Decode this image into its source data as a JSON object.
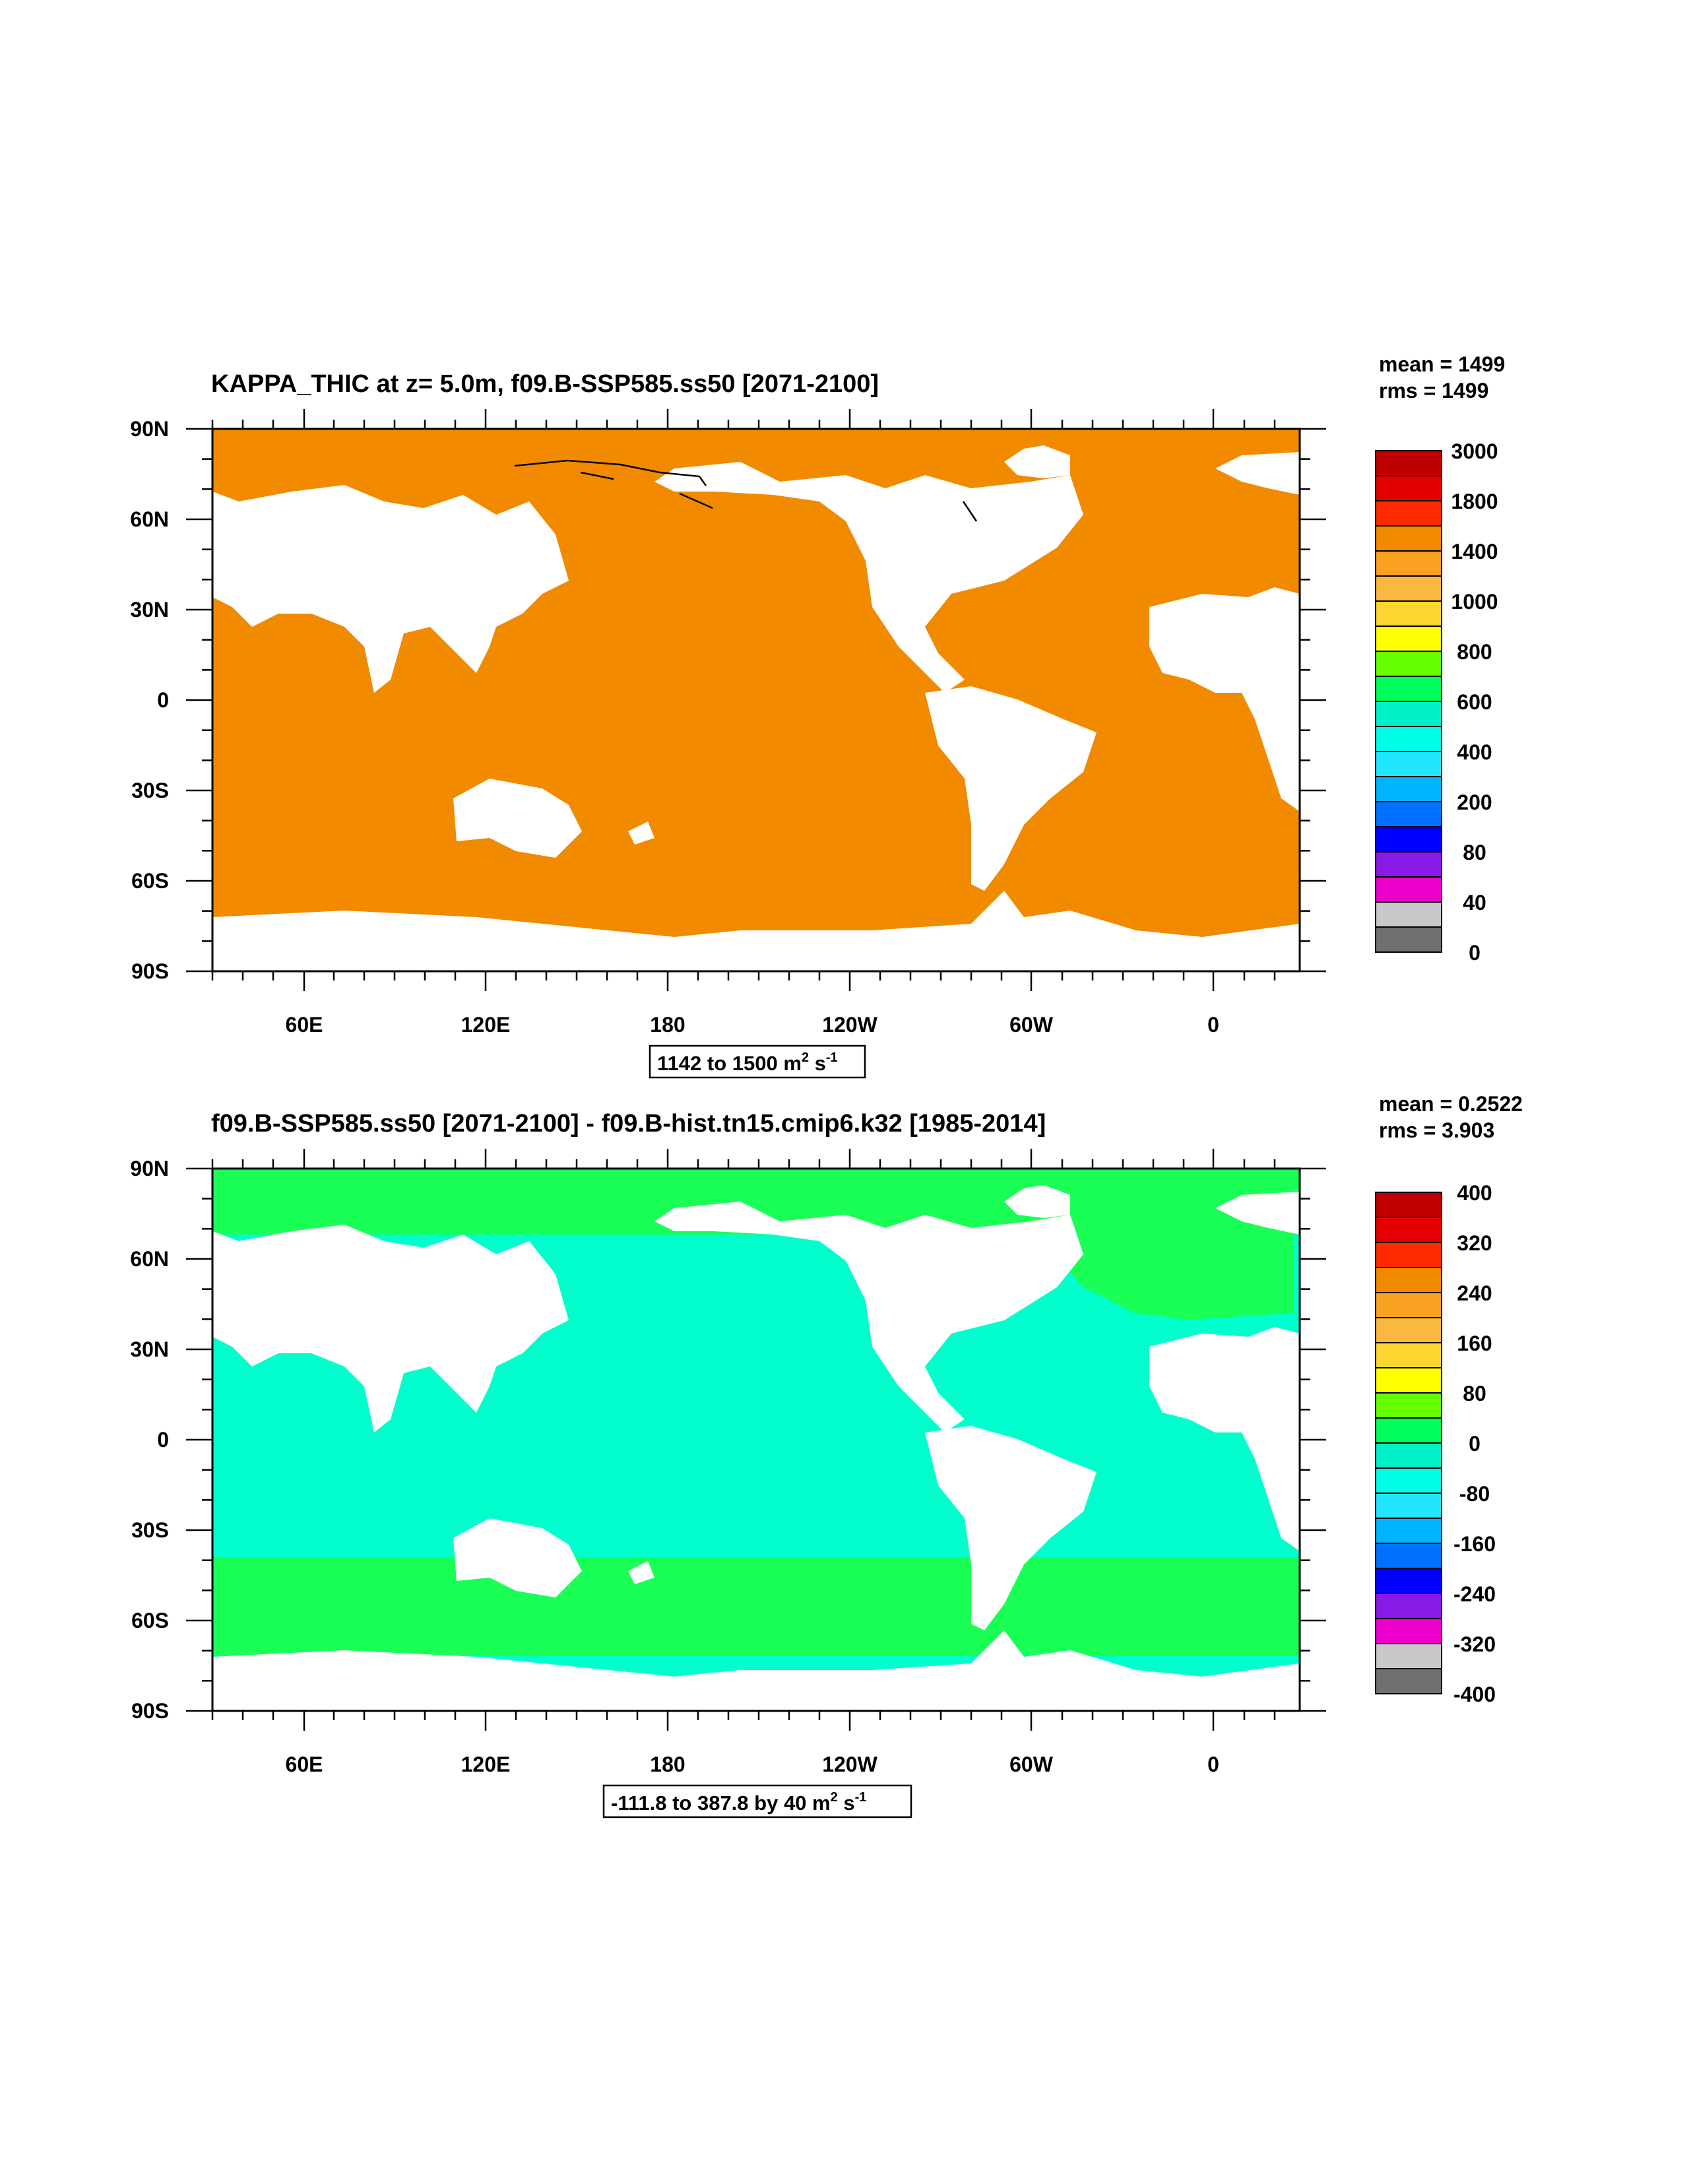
{
  "panels": [
    {
      "title": "KAPPA_THIC at z=   5.0m, f09.B-SSP585.ss50 [2071-2100]",
      "stats": {
        "mean": "mean = 1499",
        "rms": "rms = 1499"
      },
      "range_label": {
        "text": "1142 to 1500 m",
        "sup1": "2",
        "mid": " s",
        "sup2": "-1"
      },
      "ocean_fill": "#f28a00",
      "colorbar": {
        "labels": [
          "3000",
          "1800",
          "1400",
          "1000",
          "800",
          "600",
          "400",
          "200",
          "80",
          "40",
          "0"
        ],
        "colors": [
          "#c00000",
          "#e50000",
          "#ff2a00",
          "#f28a00",
          "#f8a020",
          "#fbb840",
          "#fcd62e",
          "#ffff00",
          "#66ff00",
          "#00ff5a",
          "#00f0c8",
          "#00ffe6",
          "#22e6ff",
          "#00b4ff",
          "#0070ff",
          "#0000ff",
          "#8a1ae6",
          "#ee00cc",
          "#c8c8c8",
          "#707070"
        ]
      }
    },
    {
      "title": "f09.B-SSP585.ss50 [2071-2100] - f09.B-hist.tn15.cmip6.k32 [1985-2014]",
      "stats": {
        "mean": "mean = 0.2522",
        "rms": "rms = 3.903"
      },
      "range_label": {
        "text": "-111.8 to 387.8 by 40 m",
        "sup1": "2",
        "mid": " s",
        "sup2": "-1"
      },
      "ocean_fill": "#00ffcc",
      "colorbar": {
        "labels": [
          "400",
          "320",
          "240",
          "160",
          "80",
          "0",
          "-80",
          "-160",
          "-240",
          "-320",
          "-400"
        ],
        "colors": [
          "#c00000",
          "#e50000",
          "#ff2a00",
          "#f28a00",
          "#f8a020",
          "#fbb840",
          "#fcd62e",
          "#ffff00",
          "#66ff00",
          "#00ff5a",
          "#00f0c8",
          "#00ffe6",
          "#22e6ff",
          "#00b4ff",
          "#0070ff",
          "#0000ff",
          "#8a1ae6",
          "#ee00cc",
          "#c8c8c8",
          "#707070"
        ]
      }
    }
  ],
  "lat_labels": [
    "90N",
    "60N",
    "30N",
    "0",
    "30S",
    "60S",
    "90S"
  ],
  "lon_labels": [
    "60E",
    "120E",
    "180",
    "120W",
    "60W",
    "0"
  ],
  "anomaly_band_fill": "#1aff55"
}
